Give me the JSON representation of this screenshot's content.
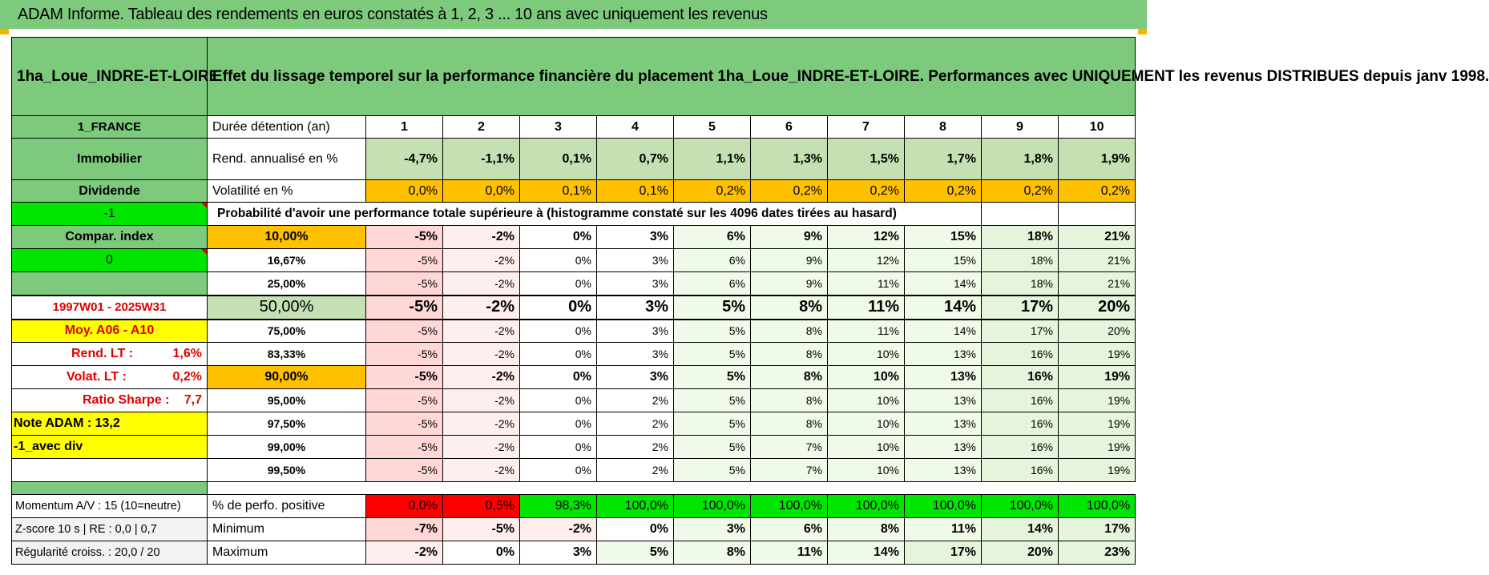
{
  "header": {
    "title": "ADAM Informe. Tableau des rendements en euros constatés à 1, 2, 3 ... 10 ans avec uniquement les revenus"
  },
  "left": {
    "name": "1ha_Loue_INDRE-ET-LOIRE",
    "country": "1_FRANCE",
    "category": "Immobilier",
    "dividend": "Dividende",
    "flag1": "-1",
    "compar": "Compar. index",
    "flag2": "0",
    "period": "1997W01 - 2025W31",
    "moy": "Moy. A06 - A10",
    "rend_lt_label": "Rend. LT :",
    "rend_lt_value": "1,6%",
    "volat_lt_label": "Volat. LT :",
    "volat_lt_value": "0,2%",
    "sharpe_label": "Ratio Sharpe :",
    "sharpe_value": "7,7",
    "note": "Note ADAM : 13,2",
    "avec_div": "-1_avec div",
    "momentum": "Momentum A/V : 15 (10=neutre)",
    "zscore": "Z-score 10 s  |  RE : 0,0  |  0,7",
    "regularite": "Régularité croiss. : 20,0 / 20"
  },
  "description": "Effet du lissage temporel sur la performance financière du placement 1ha_Loue_INDRE-ET-LOIRE. Performances avec UNIQUEMENT les revenus DISTRIBUES depuis janv 1998.",
  "rows": {
    "duration_label": "Durée détention (an)",
    "years": [
      "1",
      "2",
      "3",
      "4",
      "5",
      "6",
      "7",
      "8",
      "9",
      "10"
    ],
    "rend_label": "Rend. annualisé en %",
    "rend": [
      "-4,7%",
      "-1,1%",
      "0,1%",
      "0,7%",
      "1,1%",
      "1,3%",
      "1,5%",
      "1,7%",
      "1,8%",
      "1,9%"
    ],
    "vol_label": "Volatilité en %",
    "vol": [
      "0,0%",
      "0,0%",
      "0,1%",
      "0,1%",
      "0,2%",
      "0,2%",
      "0,2%",
      "0,2%",
      "0,2%",
      "0,2%"
    ],
    "prob_label": "Probabilité d'avoir une performance totale supérieure à (histogramme constaté sur les 4096 dates tirées au hasard)",
    "percentiles": [
      {
        "p": "10,00%",
        "v": [
          "-5%",
          "-2%",
          "0%",
          "3%",
          "6%",
          "9%",
          "12%",
          "15%",
          "18%",
          "21%"
        ]
      },
      {
        "p": "16,67%",
        "v": [
          "-5%",
          "-2%",
          "0%",
          "3%",
          "6%",
          "9%",
          "12%",
          "15%",
          "18%",
          "21%"
        ]
      },
      {
        "p": "25,00%",
        "v": [
          "-5%",
          "-2%",
          "0%",
          "3%",
          "6%",
          "9%",
          "11%",
          "14%",
          "18%",
          "21%"
        ]
      },
      {
        "p": "50,00%",
        "v": [
          "-5%",
          "-2%",
          "0%",
          "3%",
          "5%",
          "8%",
          "11%",
          "14%",
          "17%",
          "20%"
        ]
      },
      {
        "p": "75,00%",
        "v": [
          "-5%",
          "-2%",
          "0%",
          "3%",
          "5%",
          "8%",
          "11%",
          "14%",
          "17%",
          "20%"
        ]
      },
      {
        "p": "83,33%",
        "v": [
          "-5%",
          "-2%",
          "0%",
          "3%",
          "5%",
          "8%",
          "10%",
          "13%",
          "16%",
          "19%"
        ]
      },
      {
        "p": "90,00%",
        "v": [
          "-5%",
          "-2%",
          "0%",
          "3%",
          "5%",
          "8%",
          "10%",
          "13%",
          "16%",
          "19%"
        ]
      },
      {
        "p": "95,00%",
        "v": [
          "-5%",
          "-2%",
          "0%",
          "2%",
          "5%",
          "8%",
          "10%",
          "13%",
          "16%",
          "19%"
        ]
      },
      {
        "p": "97,50%",
        "v": [
          "-5%",
          "-2%",
          "0%",
          "2%",
          "5%",
          "8%",
          "10%",
          "13%",
          "16%",
          "19%"
        ]
      },
      {
        "p": "99,00%",
        "v": [
          "-5%",
          "-2%",
          "0%",
          "2%",
          "5%",
          "7%",
          "10%",
          "13%",
          "16%",
          "19%"
        ]
      },
      {
        "p": "99,50%",
        "v": [
          "-5%",
          "-2%",
          "0%",
          "2%",
          "5%",
          "7%",
          "10%",
          "13%",
          "16%",
          "19%"
        ]
      }
    ],
    "pos_label": "% de perfo. positive",
    "pos": [
      "0,0%",
      "0,5%",
      "98,3%",
      "100,0%",
      "100,0%",
      "100,0%",
      "100,0%",
      "100,0%",
      "100,0%",
      "100,0%"
    ],
    "min_label": "Minimum",
    "min": [
      "-7%",
      "-5%",
      "-2%",
      "0%",
      "3%",
      "6%",
      "8%",
      "11%",
      "14%",
      "17%"
    ],
    "max_label": "Maximum",
    "max": [
      "-2%",
      "0%",
      "3%",
      "5%",
      "8%",
      "11%",
      "14%",
      "17%",
      "20%",
      "23%"
    ]
  },
  "colors": {
    "header_green": "#7dca7d",
    "bright_green": "#00e600",
    "orange": "#ffc000",
    "yellow": "#ffff00",
    "red": "#ff0000"
  }
}
